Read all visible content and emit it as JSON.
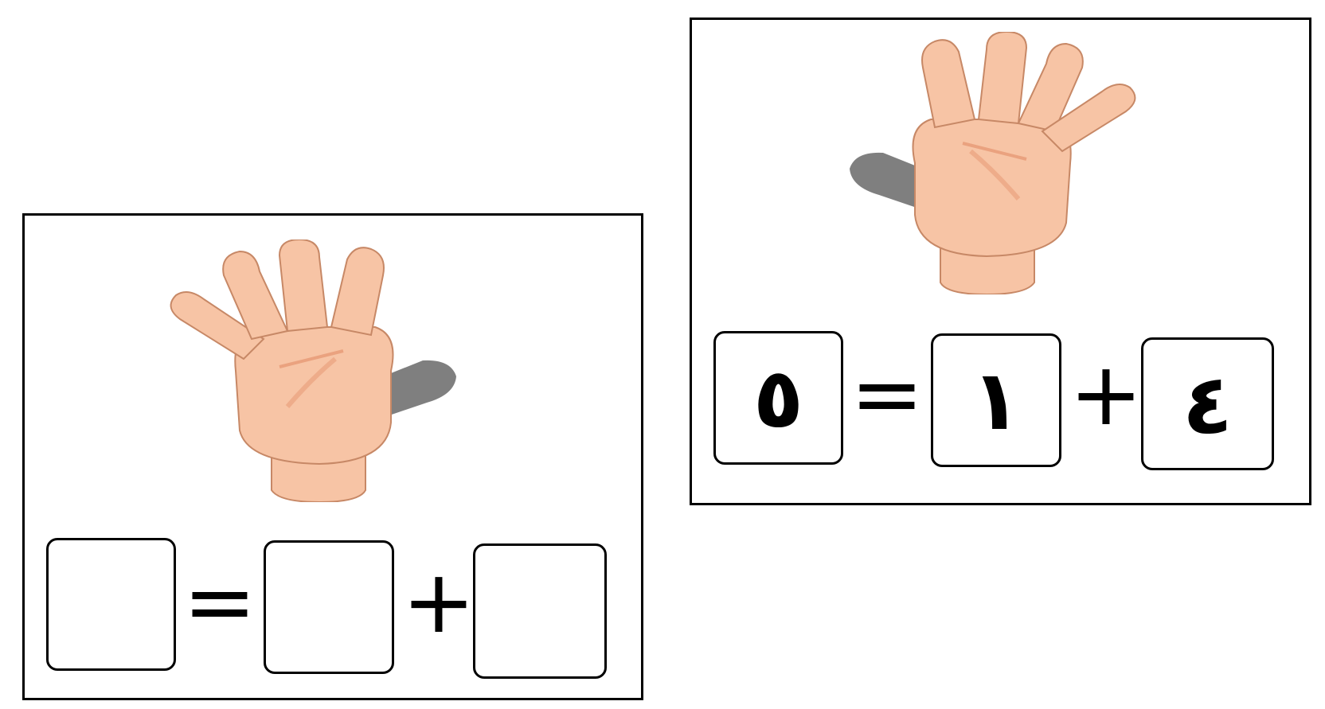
{
  "colors": {
    "skin": "#f7c4a5",
    "skin_shadow": "#eaa27f",
    "outline": "#c78866",
    "folded_finger": "#7f7f7f",
    "border": "#000000"
  },
  "cards": {
    "left": {
      "hand_icon": "hand-five-fingers-thumb-folded-icon",
      "answer": "",
      "equals": "=",
      "addend_a": "",
      "plus": "+",
      "addend_b": ""
    },
    "right": {
      "hand_icon": "hand-five-fingers-thumb-folded-icon",
      "answer": "٥",
      "equals": "=",
      "addend_a": "١",
      "plus": "+",
      "addend_b": "٤"
    }
  }
}
